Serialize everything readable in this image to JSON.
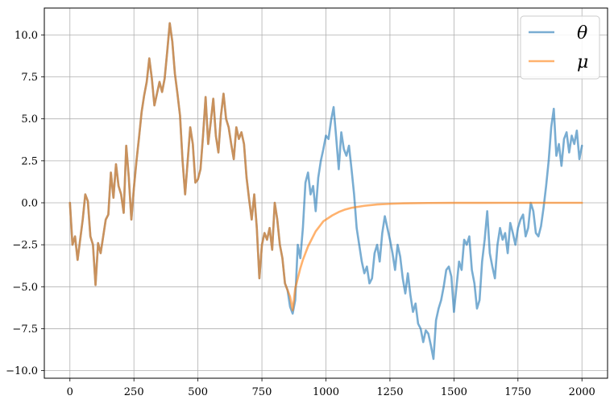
{
  "chart_data": {
    "type": "line",
    "title": "",
    "xlabel": "",
    "ylabel": "",
    "xlim": [
      -100,
      2100
    ],
    "ylim": [
      -10.45,
      11.6
    ],
    "grid": true,
    "legend_position": "top-right",
    "xticks": [
      0,
      250,
      500,
      750,
      1000,
      1250,
      1500,
      1750,
      2000
    ],
    "xtick_labels": [
      "0",
      "250",
      "500",
      "750",
      "1000",
      "1250",
      "1500",
      "1750",
      "2000"
    ],
    "yticks": [
      -10.0,
      -7.5,
      -5.0,
      -2.5,
      0.0,
      2.5,
      5.0,
      7.5,
      10.0
    ],
    "ytick_labels": [
      "−10.0",
      "−7.5",
      "−5.0",
      "−2.5",
      "0.0",
      "2.5",
      "5.0",
      "7.5",
      "10.0"
    ],
    "series": [
      {
        "name": "θ",
        "color": "#1f77b4",
        "points": [
          [
            0,
            0.0
          ],
          [
            10,
            -2.5
          ],
          [
            20,
            -2.0
          ],
          [
            30,
            -3.4
          ],
          [
            40,
            -2.2
          ],
          [
            50,
            -1.0
          ],
          [
            60,
            0.5
          ],
          [
            70,
            0.1
          ],
          [
            80,
            -2.0
          ],
          [
            90,
            -2.5
          ],
          [
            100,
            -4.9
          ],
          [
            110,
            -2.4
          ],
          [
            120,
            -3.0
          ],
          [
            130,
            -2.0
          ],
          [
            140,
            -1.0
          ],
          [
            150,
            -0.7
          ],
          [
            160,
            1.8
          ],
          [
            170,
            0.3
          ],
          [
            180,
            2.3
          ],
          [
            190,
            1.0
          ],
          [
            200,
            0.5
          ],
          [
            210,
            -0.6
          ],
          [
            220,
            3.4
          ],
          [
            230,
            1.5
          ],
          [
            240,
            -1.0
          ],
          [
            250,
            0.9
          ],
          [
            260,
            2.5
          ],
          [
            270,
            3.9
          ],
          [
            280,
            5.4
          ],
          [
            290,
            6.4
          ],
          [
            300,
            7.2
          ],
          [
            310,
            8.6
          ],
          [
            320,
            7.4
          ],
          [
            330,
            5.8
          ],
          [
            340,
            6.5
          ],
          [
            350,
            7.2
          ],
          [
            360,
            6.6
          ],
          [
            370,
            7.4
          ],
          [
            380,
            9.0
          ],
          [
            390,
            10.7
          ],
          [
            400,
            9.6
          ],
          [
            410,
            7.7
          ],
          [
            420,
            6.5
          ],
          [
            430,
            5.2
          ],
          [
            440,
            2.5
          ],
          [
            450,
            0.5
          ],
          [
            460,
            2.5
          ],
          [
            470,
            4.5
          ],
          [
            480,
            3.5
          ],
          [
            490,
            1.2
          ],
          [
            500,
            1.4
          ],
          [
            510,
            2.0
          ],
          [
            520,
            4.0
          ],
          [
            530,
            6.3
          ],
          [
            540,
            3.5
          ],
          [
            550,
            4.8
          ],
          [
            560,
            6.2
          ],
          [
            570,
            4.0
          ],
          [
            580,
            3.0
          ],
          [
            590,
            5.2
          ],
          [
            600,
            6.5
          ],
          [
            610,
            5.0
          ],
          [
            620,
            4.5
          ],
          [
            630,
            3.5
          ],
          [
            640,
            2.6
          ],
          [
            650,
            4.5
          ],
          [
            660,
            3.8
          ],
          [
            670,
            4.2
          ],
          [
            680,
            3.5
          ],
          [
            690,
            1.5
          ],
          [
            700,
            0.2
          ],
          [
            710,
            -1.0
          ],
          [
            720,
            0.5
          ],
          [
            730,
            -1.5
          ],
          [
            740,
            -4.5
          ],
          [
            750,
            -2.5
          ],
          [
            760,
            -1.8
          ],
          [
            770,
            -2.2
          ],
          [
            780,
            -1.5
          ],
          [
            790,
            -2.8
          ],
          [
            800,
            0.0
          ],
          [
            810,
            -1.0
          ],
          [
            820,
            -2.5
          ],
          [
            830,
            -3.3
          ],
          [
            840,
            -4.8
          ],
          [
            850,
            -5.2
          ],
          [
            860,
            -6.2
          ],
          [
            870,
            -6.6
          ],
          [
            880,
            -5.8
          ],
          [
            890,
            -2.5
          ],
          [
            900,
            -3.3
          ],
          [
            910,
            -1.5
          ],
          [
            920,
            1.2
          ],
          [
            930,
            1.8
          ],
          [
            940,
            0.5
          ],
          [
            950,
            1.0
          ],
          [
            960,
            -0.5
          ],
          [
            970,
            1.5
          ],
          [
            980,
            2.5
          ],
          [
            990,
            3.2
          ],
          [
            1000,
            4.0
          ],
          [
            1010,
            3.8
          ],
          [
            1020,
            4.9
          ],
          [
            1030,
            5.7
          ],
          [
            1040,
            3.9
          ],
          [
            1050,
            2.0
          ],
          [
            1060,
            4.2
          ],
          [
            1070,
            3.2
          ],
          [
            1080,
            2.8
          ],
          [
            1090,
            3.4
          ],
          [
            1100,
            2.0
          ],
          [
            1110,
            0.5
          ],
          [
            1120,
            -1.5
          ],
          [
            1130,
            -2.5
          ],
          [
            1140,
            -3.5
          ],
          [
            1150,
            -4.2
          ],
          [
            1160,
            -3.8
          ],
          [
            1170,
            -4.8
          ],
          [
            1180,
            -4.5
          ],
          [
            1190,
            -3.0
          ],
          [
            1200,
            -2.5
          ],
          [
            1210,
            -3.5
          ],
          [
            1220,
            -1.8
          ],
          [
            1230,
            -0.8
          ],
          [
            1240,
            -1.5
          ],
          [
            1250,
            -2.2
          ],
          [
            1260,
            -3.0
          ],
          [
            1270,
            -4.0
          ],
          [
            1280,
            -2.5
          ],
          [
            1290,
            -3.2
          ],
          [
            1300,
            -4.5
          ],
          [
            1310,
            -5.4
          ],
          [
            1320,
            -4.2
          ],
          [
            1330,
            -5.5
          ],
          [
            1340,
            -6.5
          ],
          [
            1350,
            -6.0
          ],
          [
            1360,
            -7.2
          ],
          [
            1370,
            -7.5
          ],
          [
            1380,
            -8.3
          ],
          [
            1390,
            -7.6
          ],
          [
            1400,
            -7.8
          ],
          [
            1410,
            -8.5
          ],
          [
            1420,
            -9.3
          ],
          [
            1430,
            -7.0
          ],
          [
            1440,
            -6.3
          ],
          [
            1450,
            -5.8
          ],
          [
            1460,
            -5.0
          ],
          [
            1470,
            -4.0
          ],
          [
            1480,
            -3.8
          ],
          [
            1490,
            -4.4
          ],
          [
            1500,
            -6.5
          ],
          [
            1510,
            -5.0
          ],
          [
            1520,
            -3.5
          ],
          [
            1530,
            -4.0
          ],
          [
            1540,
            -2.2
          ],
          [
            1550,
            -2.5
          ],
          [
            1560,
            -2.0
          ],
          [
            1570,
            -4.0
          ],
          [
            1580,
            -4.8
          ],
          [
            1590,
            -6.3
          ],
          [
            1600,
            -5.8
          ],
          [
            1610,
            -3.5
          ],
          [
            1620,
            -2.2
          ],
          [
            1630,
            -0.5
          ],
          [
            1640,
            -3.0
          ],
          [
            1650,
            -3.8
          ],
          [
            1660,
            -4.5
          ],
          [
            1670,
            -2.5
          ],
          [
            1680,
            -1.5
          ],
          [
            1690,
            -2.2
          ],
          [
            1700,
            -1.8
          ],
          [
            1710,
            -3.0
          ],
          [
            1720,
            -1.2
          ],
          [
            1730,
            -1.8
          ],
          [
            1740,
            -2.5
          ],
          [
            1750,
            -1.5
          ],
          [
            1760,
            -1.0
          ],
          [
            1770,
            -0.7
          ],
          [
            1780,
            -2.0
          ],
          [
            1790,
            -1.5
          ],
          [
            1800,
            0.0
          ],
          [
            1810,
            -0.5
          ],
          [
            1820,
            -1.8
          ],
          [
            1830,
            -2.0
          ],
          [
            1840,
            -1.4
          ],
          [
            1850,
            -0.3
          ],
          [
            1860,
            1.0
          ],
          [
            1870,
            2.5
          ],
          [
            1880,
            4.5
          ],
          [
            1890,
            5.6
          ],
          [
            1900,
            2.8
          ],
          [
            1910,
            3.5
          ],
          [
            1920,
            2.2
          ],
          [
            1930,
            3.8
          ],
          [
            1940,
            4.2
          ],
          [
            1950,
            3.0
          ],
          [
            1960,
            4.0
          ],
          [
            1970,
            3.5
          ],
          [
            1980,
            4.3
          ],
          [
            1990,
            2.6
          ],
          [
            2000,
            3.4
          ]
        ]
      },
      {
        "name": "μ",
        "color": "#ff7f0e",
        "points": [
          [
            0,
            0.0
          ],
          [
            10,
            -2.5
          ],
          [
            20,
            -2.0
          ],
          [
            30,
            -3.4
          ],
          [
            40,
            -2.2
          ],
          [
            50,
            -1.0
          ],
          [
            60,
            0.5
          ],
          [
            70,
            0.1
          ],
          [
            80,
            -2.0
          ],
          [
            90,
            -2.5
          ],
          [
            100,
            -4.9
          ],
          [
            110,
            -2.4
          ],
          [
            120,
            -3.0
          ],
          [
            130,
            -2.0
          ],
          [
            140,
            -1.0
          ],
          [
            150,
            -0.7
          ],
          [
            160,
            1.8
          ],
          [
            170,
            0.3
          ],
          [
            180,
            2.3
          ],
          [
            190,
            1.0
          ],
          [
            200,
            0.5
          ],
          [
            210,
            -0.6
          ],
          [
            220,
            3.4
          ],
          [
            230,
            1.5
          ],
          [
            240,
            -1.0
          ],
          [
            250,
            0.9
          ],
          [
            260,
            2.5
          ],
          [
            270,
            3.9
          ],
          [
            280,
            5.4
          ],
          [
            290,
            6.4
          ],
          [
            300,
            7.2
          ],
          [
            310,
            8.6
          ],
          [
            320,
            7.4
          ],
          [
            330,
            5.8
          ],
          [
            340,
            6.5
          ],
          [
            350,
            7.2
          ],
          [
            360,
            6.6
          ],
          [
            370,
            7.4
          ],
          [
            380,
            9.0
          ],
          [
            390,
            10.7
          ],
          [
            400,
            9.6
          ],
          [
            410,
            7.7
          ],
          [
            420,
            6.5
          ],
          [
            430,
            5.2
          ],
          [
            440,
            2.5
          ],
          [
            450,
            0.5
          ],
          [
            460,
            2.5
          ],
          [
            470,
            4.5
          ],
          [
            480,
            3.5
          ],
          [
            490,
            1.2
          ],
          [
            500,
            1.4
          ],
          [
            510,
            2.0
          ],
          [
            520,
            4.0
          ],
          [
            530,
            6.3
          ],
          [
            540,
            3.5
          ],
          [
            550,
            4.8
          ],
          [
            560,
            6.2
          ],
          [
            570,
            4.0
          ],
          [
            580,
            3.0
          ],
          [
            590,
            5.2
          ],
          [
            600,
            6.5
          ],
          [
            610,
            5.0
          ],
          [
            620,
            4.5
          ],
          [
            630,
            3.5
          ],
          [
            640,
            2.6
          ],
          [
            650,
            4.5
          ],
          [
            660,
            3.8
          ],
          [
            670,
            4.2
          ],
          [
            680,
            3.5
          ],
          [
            690,
            1.5
          ],
          [
            700,
            0.2
          ],
          [
            710,
            -1.0
          ],
          [
            720,
            0.5
          ],
          [
            730,
            -1.5
          ],
          [
            740,
            -4.5
          ],
          [
            750,
            -2.5
          ],
          [
            760,
            -1.8
          ],
          [
            770,
            -2.2
          ],
          [
            780,
            -1.5
          ],
          [
            790,
            -2.8
          ],
          [
            800,
            0.0
          ],
          [
            810,
            -1.0
          ],
          [
            820,
            -2.5
          ],
          [
            830,
            -3.3
          ],
          [
            840,
            -4.8
          ],
          [
            850,
            -5.2
          ],
          [
            860,
            -5.6
          ],
          [
            870,
            -6.4
          ],
          [
            880,
            -5.1
          ],
          [
            890,
            -4.5
          ],
          [
            900,
            -3.9
          ],
          [
            910,
            -3.4
          ],
          [
            920,
            -3.0
          ],
          [
            930,
            -2.6
          ],
          [
            940,
            -2.3
          ],
          [
            950,
            -2.0
          ],
          [
            960,
            -1.7
          ],
          [
            970,
            -1.5
          ],
          [
            980,
            -1.3
          ],
          [
            990,
            -1.1
          ],
          [
            1000,
            -1.0
          ],
          [
            1025,
            -0.75
          ],
          [
            1050,
            -0.55
          ],
          [
            1075,
            -0.4
          ],
          [
            1100,
            -0.3
          ],
          [
            1150,
            -0.18
          ],
          [
            1200,
            -0.1
          ],
          [
            1250,
            -0.06
          ],
          [
            1300,
            -0.035
          ],
          [
            1400,
            -0.012
          ],
          [
            1500,
            -0.004
          ],
          [
            1600,
            -0.001
          ],
          [
            1700,
            0.0
          ],
          [
            1800,
            0.0
          ],
          [
            1900,
            0.0
          ],
          [
            2000,
            0.0
          ]
        ]
      }
    ]
  }
}
